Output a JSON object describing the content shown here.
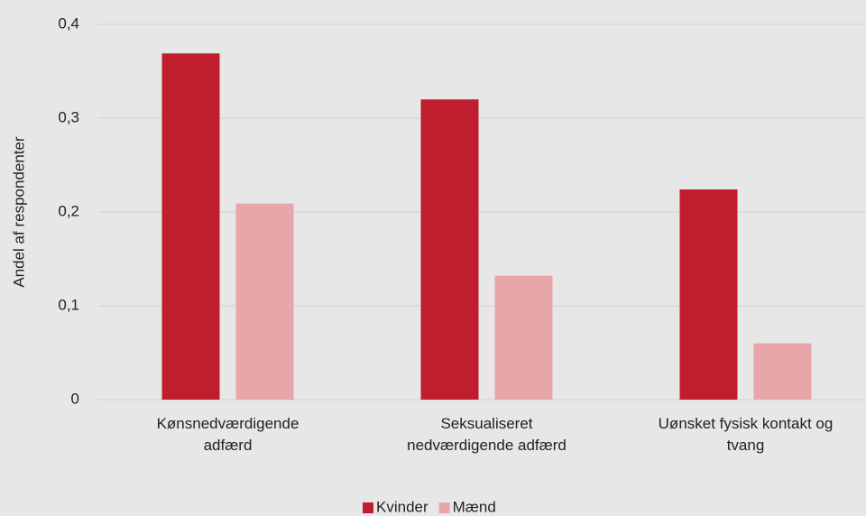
{
  "chart_data": {
    "type": "bar",
    "y_label": "Andel af respondenter",
    "categories": [
      "Kønsnedværdigende adfærd",
      "Seksualiseret nedværdigende adfærd",
      "Uønsket fysisk kontakt og tvang"
    ],
    "series": [
      {
        "name": "Kvinder",
        "color": "#be1e2d",
        "values": [
          0.369,
          0.32,
          0.224
        ]
      },
      {
        "name": "Mænd",
        "color": "#e8a6ab",
        "values": [
          0.209,
          0.132,
          0.06
        ]
      }
    ],
    "ylim": [
      0,
      0.4
    ],
    "yticks": [
      0,
      {
        "value": 0.1,
        "label": "0,1"
      },
      {
        "value": 0.2,
        "label": "0,2"
      },
      {
        "value": 0.3,
        "label": "0,3"
      },
      {
        "value": 0.4,
        "label": "0,4"
      }
    ],
    "grid": true,
    "legend": "bottom"
  }
}
